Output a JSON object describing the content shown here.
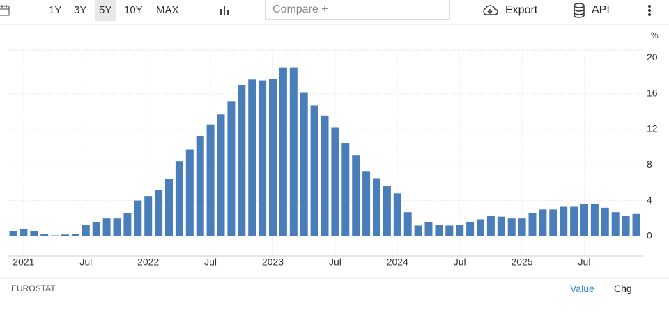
{
  "toolbar": {
    "ranges": [
      "1Y",
      "3Y",
      "5Y",
      "10Y",
      "MAX"
    ],
    "selected_range_index": 2,
    "compare_placeholder": "Compare +",
    "export": "Export",
    "api": "API"
  },
  "chart_data": {
    "type": "bar",
    "unit_label": "%",
    "categories": [
      null,
      "2021",
      null,
      null,
      null,
      null,
      null,
      "Jul",
      null,
      null,
      null,
      null,
      null,
      "2022",
      null,
      null,
      null,
      null,
      null,
      "Jul",
      null,
      null,
      null,
      null,
      null,
      "2023",
      null,
      null,
      null,
      null,
      null,
      "Jul",
      null,
      null,
      null,
      null,
      null,
      "2024",
      null,
      null,
      null,
      null,
      null,
      "Jul",
      null,
      null,
      null,
      null,
      null,
      "2025",
      null,
      null,
      null,
      null,
      null,
      "Jul",
      null,
      null,
      null,
      null,
      null
    ],
    "values": [
      0.6,
      0.8,
      0.6,
      0.3,
      0.1,
      0.2,
      0.3,
      1.3,
      1.6,
      2.0,
      2.0,
      2.6,
      4.0,
      4.5,
      5.2,
      6.4,
      8.4,
      9.7,
      11.3,
      12.5,
      13.7,
      15.1,
      17.0,
      17.6,
      17.5,
      17.7,
      18.9,
      18.9,
      16.1,
      14.7,
      13.5,
      12.2,
      10.5,
      9.1,
      7.3,
      6.5,
      5.6,
      4.8,
      2.7,
      1.2,
      1.6,
      1.3,
      1.2,
      1.3,
      1.6,
      1.9,
      2.3,
      2.2,
      2.0,
      2.0,
      2.6,
      3.0,
      3.0,
      3.3,
      3.3,
      3.6,
      3.6,
      3.2,
      2.7,
      2.3,
      2.5
    ],
    "color": "#4a7ebb",
    "ylim": [
      -2.2,
      20.9
    ],
    "yticks": [
      0,
      4,
      8,
      12,
      16,
      20
    ],
    "grid": true
  },
  "footer": {
    "source": "EUROSTAT",
    "views": [
      "Value",
      "Chg"
    ],
    "selected_view_index": 0
  }
}
